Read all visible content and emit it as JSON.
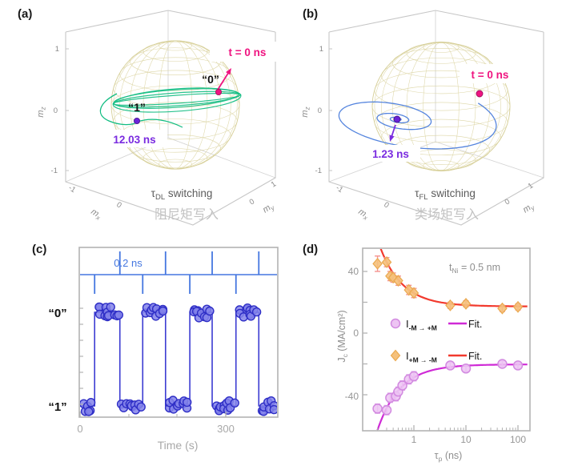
{
  "panels": {
    "a": {
      "label": "(a)",
      "time_zero": "t = 0 ns",
      "state_zero": "“0”",
      "state_one": "“1”",
      "switch_time": "12.03 ns",
      "caption_tau": "τ",
      "caption_tau_sub": "DL",
      "caption_rest": " switching",
      "caption_cn": "阻尼矩写入",
      "z_ticks": [
        "1",
        "0",
        "-1"
      ],
      "x_edge_ticks": [
        "-1",
        "0"
      ],
      "y_edge_ticks": [
        "0",
        "1"
      ],
      "axis_m": "m",
      "axis_z_sub": "z",
      "axis_x_sub": "x",
      "axis_y_sub": "y"
    },
    "b": {
      "label": "(b)",
      "time_zero": "t = 0 ns",
      "switch_time": "1.23 ns",
      "caption_tau": "τ",
      "caption_tau_sub": "FL",
      "caption_rest": " switching",
      "caption_cn": "类场矩写入",
      "z_ticks": [
        "1",
        "0",
        "-1"
      ],
      "x_edge_ticks": [
        "-1",
        "0"
      ],
      "y_edge_ticks": [
        "0",
        "1"
      ],
      "axis_m": "m",
      "axis_z_sub": "z",
      "axis_x_sub": "x",
      "axis_y_sub": "y"
    },
    "c": {
      "label": "(c)",
      "pulse_width": "0.2 ns",
      "state_zero": "“0”",
      "state_one": "“1”",
      "x_ticks": [
        "0",
        "300"
      ],
      "x_label": "Time (s)"
    },
    "d": {
      "label": "(d)",
      "annotation": {
        "sym": "t",
        "sub": "Ni",
        "rest": " = 0.5 nm"
      },
      "y_label": {
        "sym": "J",
        "sub": "c",
        "rest": " (MA/cm²)"
      },
      "x_label": {
        "sym": "τ",
        "sub": "p",
        "rest": " (ns)"
      },
      "y_ticks": [
        "40",
        "0",
        "-40"
      ],
      "x_ticks": [
        "1",
        "10",
        "100"
      ],
      "legend": [
        {
          "sym": "I",
          "sub": "-M → +M",
          "fit": "Fit."
        },
        {
          "sym": "I",
          "sub": "+M → -M",
          "fit": "Fit."
        }
      ]
    }
  },
  "colors": {
    "magenta": "#ef1480",
    "purple": "#7a2be0",
    "green_trajectory": "#12bd82",
    "blue_trajectory": "#5585de",
    "pulse_blue": "#4577e0",
    "wave_blue": "#3c3cd2",
    "marker_blue_fill": "#8282ea",
    "marker_blue_edge": "#2e2ec6",
    "diamond_fill": "#f5c17c",
    "diamond_edge": "#eaa94f",
    "diamond_err": "#f59390",
    "circle_fill": "#edc4f3",
    "circle_edge": "#d28ae0",
    "circle_err": "#dd9fe8",
    "fit_red": "#f23a2e",
    "fit_magenta": "#cf2ad6",
    "sphere_wire": "#ddd6a6",
    "frame_gray": "#b3b3b3"
  },
  "chart_data": [
    {
      "panel": "a",
      "type": "3d_trajectory",
      "title": "τ_DL switching (阻尼矩写入 / damping-torque writing)",
      "axes": {
        "x": "m_x",
        "y": "m_y",
        "z": "m_z",
        "range": [
          -1,
          1
        ]
      },
      "description": "Magnetization trajectory on unit Bloch sphere: starts at state “0” at t = 0 ns, precesses in a band around the equator, ends at state “1” at 12.03 ns",
      "start_time_ns": 0,
      "end_time_ns": 12.03
    },
    {
      "panel": "b",
      "type": "3d_trajectory",
      "title": "τ_FL switching (类场矩写入 / field-like-torque writing)",
      "axes": {
        "x": "m_x",
        "y": "m_y",
        "z": "m_z",
        "range": [
          -1,
          1
        ]
      },
      "description": "Magnetization trajectory on unit Bloch sphere: starts at t = 0 ns and spirals inward, converging at 1.23 ns",
      "start_time_ns": 0,
      "end_time_ns": 1.23
    },
    {
      "panel": "c",
      "type": "line_scatter",
      "x_label": "Time (s)",
      "x_ticks": [
        0,
        300
      ],
      "x_range": [
        0,
        405
      ],
      "levels": {
        "high": "“0”",
        "low": "“1”"
      },
      "pulse_width_label": "0.2 ns",
      "negative_pulses_s": [
        30,
        129,
        226,
        321
      ],
      "positive_pulses_s": [
        82,
        176,
        272,
        368
      ],
      "initial_state": "1",
      "switch_times_s": [
        30,
        82,
        129,
        176,
        226,
        272,
        321,
        368
      ]
    },
    {
      "panel": "d",
      "type": "scatter_fit",
      "x_label": "τ_p (ns)",
      "y_label": "J_c (MA/cm²)",
      "x_scale": "log",
      "x_ticks": [
        1,
        10,
        100
      ],
      "x_range": [
        0.11,
        160
      ],
      "y_ticks": [
        40,
        0,
        -40
      ],
      "y_range": [
        -63,
        55
      ],
      "annotation": "t_Ni = 0.5 nm",
      "series": [
        {
          "name": "I+M→-M",
          "marker": "diamond",
          "tau_ns": [
            0.2,
            0.3,
            0.35,
            0.4,
            0.5,
            0.8,
            1,
            5,
            10,
            50,
            100
          ],
          "Jc": [
            45,
            46,
            37,
            36,
            34,
            28,
            26,
            18,
            19,
            16,
            17
          ],
          "err": [
            5,
            3,
            3,
            3,
            3,
            3,
            3,
            2,
            2,
            2,
            2
          ],
          "fit": {
            "J0": 17.3,
            "tau0": 0.5
          }
        },
        {
          "name": "I-M→+M",
          "marker": "circle",
          "tau_ns": [
            0.2,
            0.3,
            0.35,
            0.45,
            0.5,
            0.6,
            0.8,
            1,
            5,
            10,
            50,
            100
          ],
          "Jc": [
            -49,
            -50,
            -42,
            -41,
            -38,
            -34,
            -30,
            -28,
            -21,
            -23,
            -20,
            -21
          ],
          "err": [
            3,
            3,
            3,
            3,
            3,
            3,
            3,
            3,
            2,
            2,
            2,
            2
          ],
          "fit": {
            "J0": -20.3,
            "tau0": 0.42
          }
        }
      ]
    }
  ]
}
